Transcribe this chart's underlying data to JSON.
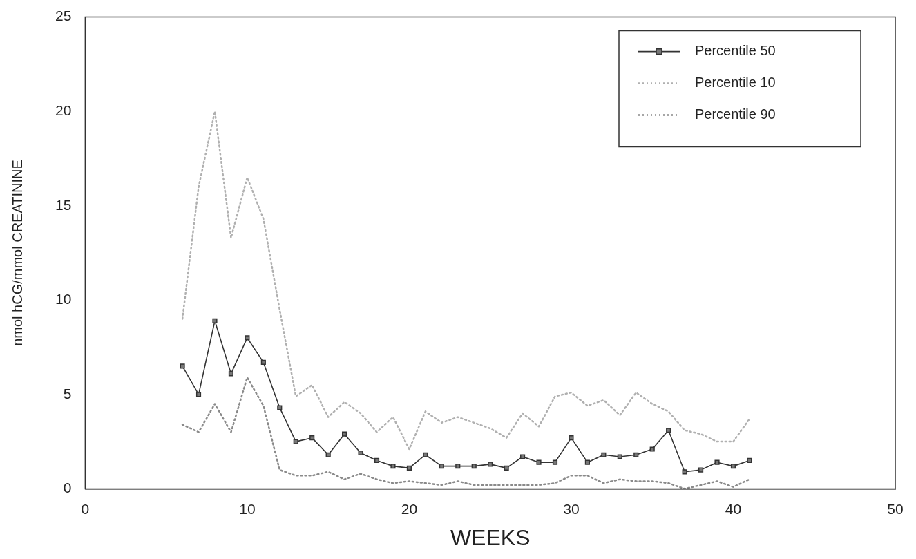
{
  "chart_data": {
    "type": "line",
    "xlabel": "WEEKS",
    "ylabel": "nmol hCG/mmol CREATININE",
    "x": [
      6,
      7,
      8,
      9,
      10,
      11,
      12,
      13,
      14,
      15,
      16,
      17,
      18,
      19,
      20,
      21,
      22,
      23,
      24,
      25,
      26,
      27,
      28,
      29,
      30,
      31,
      32,
      33,
      34,
      35,
      36,
      37,
      38,
      39,
      40,
      41
    ],
    "xlim": [
      0,
      50
    ],
    "xticks": [
      0,
      10,
      20,
      30,
      40,
      50
    ],
    "ylim": [
      0,
      25
    ],
    "yticks": [
      0,
      5,
      10,
      15,
      20,
      25
    ],
    "grid": false,
    "legend": "top right",
    "series": [
      {
        "name": "Percentile 50",
        "color": "#333333",
        "marker": "square",
        "line_style": "solid",
        "values": [
          6.5,
          5.0,
          8.9,
          6.1,
          8.0,
          6.7,
          4.3,
          2.5,
          2.7,
          1.8,
          2.9,
          1.9,
          1.5,
          1.2,
          1.1,
          1.8,
          1.2,
          1.2,
          1.2,
          1.3,
          1.1,
          1.7,
          1.4,
          1.4,
          2.7,
          1.4,
          1.8,
          1.7,
          1.8,
          2.1,
          3.1,
          0.9,
          1.0,
          1.4,
          1.2,
          1.5
        ]
      },
      {
        "name": "Percentile 10",
        "color": "#b0b0b0",
        "marker": "none",
        "line_style": "dotted",
        "values": [
          9.0,
          16.0,
          20.0,
          13.3,
          16.5,
          14.3,
          9.5,
          4.9,
          5.5,
          3.8,
          4.6,
          4.0,
          3.0,
          3.8,
          2.1,
          4.1,
          3.5,
          3.8,
          3.5,
          3.2,
          2.7,
          4.0,
          3.3,
          4.9,
          5.1,
          4.4,
          4.7,
          3.9,
          5.1,
          4.5,
          4.1,
          3.1,
          2.9,
          2.5,
          2.5,
          3.7
        ]
      },
      {
        "name": "Percentile 90",
        "color": "#8a8a8a",
        "marker": "none",
        "line_style": "dotted",
        "values": [
          3.4,
          3.0,
          4.5,
          3.0,
          5.9,
          4.4,
          1.0,
          0.7,
          0.7,
          0.9,
          0.5,
          0.8,
          0.5,
          0.3,
          0.4,
          0.3,
          0.2,
          0.4,
          0.2,
          0.2,
          0.2,
          0.2,
          0.2,
          0.3,
          0.7,
          0.7,
          0.3,
          0.5,
          0.4,
          0.4,
          0.3,
          0.0,
          0.2,
          0.4,
          0.1,
          0.5
        ]
      }
    ]
  }
}
